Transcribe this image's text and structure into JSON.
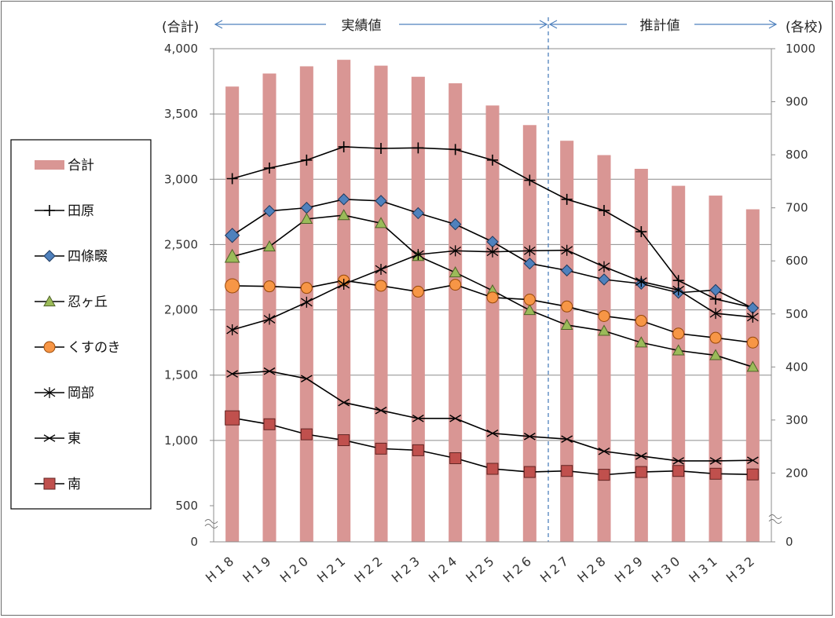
{
  "chart_data": {
    "type": "bar",
    "categories": [
      "H18",
      "H19",
      "H20",
      "H21",
      "H22",
      "H23",
      "H24",
      "H25",
      "H26",
      "H27",
      "H28",
      "H29",
      "H30",
      "H31",
      "H32"
    ],
    "axis_labels": {
      "left": "(合計)",
      "right": "(各校)"
    },
    "period_labels": {
      "actual": "実績値",
      "estimate": "推計値"
    },
    "left_axis": {
      "ylim": [
        0,
        4000
      ],
      "ticks": [
        0,
        500,
        1000,
        1500,
        2000,
        2500,
        3000,
        3500,
        4000
      ],
      "tick_labels": [
        "0",
        "500",
        "1,000",
        "1,500",
        "2,000",
        "2,500",
        "3,000",
        "3,500",
        "4,000"
      ],
      "broken": true
    },
    "right_axis": {
      "ylim": [
        0,
        1000
      ],
      "ticks": [
        0,
        200,
        300,
        400,
        500,
        600,
        700,
        800,
        900,
        1000
      ],
      "tick_labels": [
        "0",
        "200",
        "300",
        "400",
        "500",
        "600",
        "700",
        "800",
        "900",
        "1000"
      ],
      "broken": true
    },
    "divider_after_category": "H26",
    "grid": true,
    "legend_position": "left",
    "bar_series": {
      "name": "合計",
      "axis": "left",
      "color": "#d99694",
      "values": [
        3710,
        3810,
        3865,
        3915,
        3870,
        3785,
        3735,
        3565,
        3415,
        3295,
        3185,
        3080,
        2950,
        2875,
        2770
      ]
    },
    "series": [
      {
        "name": "田原",
        "axis": "right",
        "marker": "plus",
        "color": "#000000",
        "values": [
          755,
          775,
          790,
          815,
          812,
          813,
          810,
          790,
          752,
          716,
          695,
          655,
          563,
          528,
          512
        ]
      },
      {
        "name": "四條畷",
        "axis": "right",
        "marker": "diamond",
        "color": "#4f81bd",
        "values": [
          648,
          694,
          700,
          716,
          713,
          690,
          669,
          636,
          595,
          582,
          565,
          557,
          540,
          545,
          511
        ]
      },
      {
        "name": "忍ヶ丘",
        "axis": "right",
        "marker": "triangle",
        "color": "#9bbb59",
        "values": [
          608,
          627,
          679,
          686,
          671,
          609,
          578,
          544,
          507,
          479,
          468,
          446,
          431,
          422,
          400
        ]
      },
      {
        "name": "くすのき",
        "axis": "right",
        "marker": "circle",
        "color": "#f79646",
        "values": [
          553,
          552,
          549,
          563,
          553,
          542,
          555,
          531,
          527,
          514,
          496,
          487,
          463,
          455,
          446
        ]
      },
      {
        "name": "岡部",
        "axis": "right",
        "marker": "asterisk",
        "color": "#000000",
        "values": [
          470,
          490,
          522,
          556,
          584,
          612,
          619,
          617,
          619,
          620,
          589,
          561,
          545,
          501,
          494
        ]
      },
      {
        "name": "東",
        "axis": "right",
        "marker": "x",
        "color": "#000000",
        "values": [
          387,
          392,
          378,
          333,
          318,
          303,
          303,
          275,
          269,
          264,
          241,
          232,
          223,
          223,
          224
        ]
      },
      {
        "name": "南",
        "axis": "right",
        "marker": "square",
        "color": "#c0504d",
        "values": [
          304,
          292,
          273,
          262,
          246,
          243,
          228,
          208,
          202,
          204,
          195,
          202,
          204,
          198,
          196
        ]
      }
    ]
  }
}
